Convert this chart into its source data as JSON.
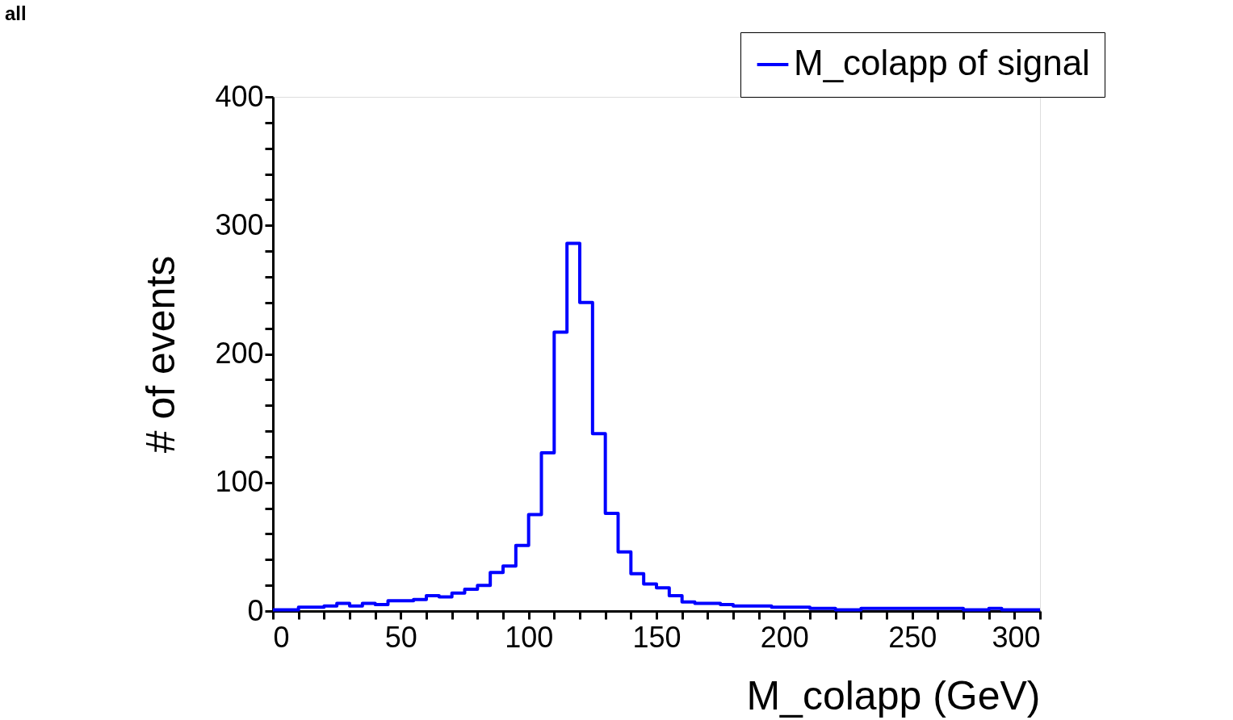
{
  "chart_data": {
    "type": "histogram",
    "title": "all",
    "xlabel": "M_colapp (GeV)",
    "ylabel": "# of events",
    "bins": [
      0,
      5,
      10,
      15,
      20,
      25,
      30,
      35,
      40,
      45,
      50,
      55,
      60,
      65,
      70,
      75,
      80,
      85,
      90,
      95,
      100,
      105,
      110,
      115,
      120,
      125,
      130,
      135,
      140,
      145,
      150,
      155,
      160,
      165,
      170,
      175,
      180,
      185,
      190,
      195,
      200,
      205,
      210,
      215,
      220,
      225,
      230,
      235,
      240,
      245,
      250,
      255,
      260,
      265,
      270,
      275,
      280,
      285,
      290,
      295,
      300
    ],
    "series": [
      {
        "name": "M_colapp of signal",
        "color": "#0000ff",
        "values": [
          1,
          1,
          3,
          3,
          4,
          6,
          4,
          6,
          5,
          8,
          8,
          9,
          12,
          11,
          14,
          17,
          20,
          30,
          35,
          51,
          75,
          123,
          217,
          286,
          240,
          138,
          76,
          46,
          29,
          21,
          18,
          12,
          7,
          6,
          6,
          5,
          4,
          4,
          4,
          3,
          3,
          3,
          2,
          2,
          1,
          1,
          2,
          2,
          2,
          2,
          2,
          2,
          2,
          2,
          1,
          1,
          2,
          1,
          1,
          1
        ]
      }
    ],
    "xlim": [
      0,
      300
    ],
    "xticks": [
      0,
      {
        "value": 10,
        "label": null
      },
      {
        "value": 20,
        "label": null
      },
      {
        "value": 30,
        "label": null
      },
      {
        "value": 40,
        "label": null
      },
      50,
      {
        "value": 60,
        "label": null
      },
      {
        "value": 70,
        "label": null
      },
      {
        "value": 80,
        "label": null
      },
      {
        "value": 90,
        "label": null
      },
      100,
      {
        "value": 110,
        "label": null
      },
      {
        "value": 120,
        "label": null
      },
      {
        "value": 130,
        "label": null
      },
      {
        "value": 140,
        "label": null
      },
      150,
      {
        "value": 160,
        "label": null
      },
      {
        "value": 170,
        "label": null
      },
      {
        "value": 180,
        "label": null
      },
      {
        "value": 190,
        "label": null
      },
      200,
      {
        "value": 210,
        "label": null
      },
      {
        "value": 220,
        "label": null
      },
      {
        "value": 230,
        "label": null
      },
      {
        "value": 240,
        "label": null
      },
      250,
      {
        "value": 260,
        "label": null
      },
      {
        "value": 270,
        "label": null
      },
      {
        "value": 280,
        "label": null
      },
      {
        "value": 290,
        "label": null
      },
      300
    ],
    "ylim": [
      0,
      400
    ],
    "yticks": [
      0,
      {
        "value": 20,
        "label": null
      },
      {
        "value": 40,
        "label": null
      },
      {
        "value": 60,
        "label": null
      },
      {
        "value": 80,
        "label": null
      },
      100,
      {
        "value": 120,
        "label": null
      },
      {
        "value": 140,
        "label": null
      },
      {
        "value": 160,
        "label": null
      },
      {
        "value": 180,
        "label": null
      },
      200,
      {
        "value": 220,
        "label": null
      },
      {
        "value": 240,
        "label": null
      },
      {
        "value": 260,
        "label": null
      },
      {
        "value": 280,
        "label": null
      },
      300,
      {
        "value": 320,
        "label": null
      },
      {
        "value": 340,
        "label": null
      },
      {
        "value": 360,
        "label": null
      },
      {
        "value": 380,
        "label": null
      },
      400
    ],
    "grid": false,
    "legend": "top right"
  }
}
